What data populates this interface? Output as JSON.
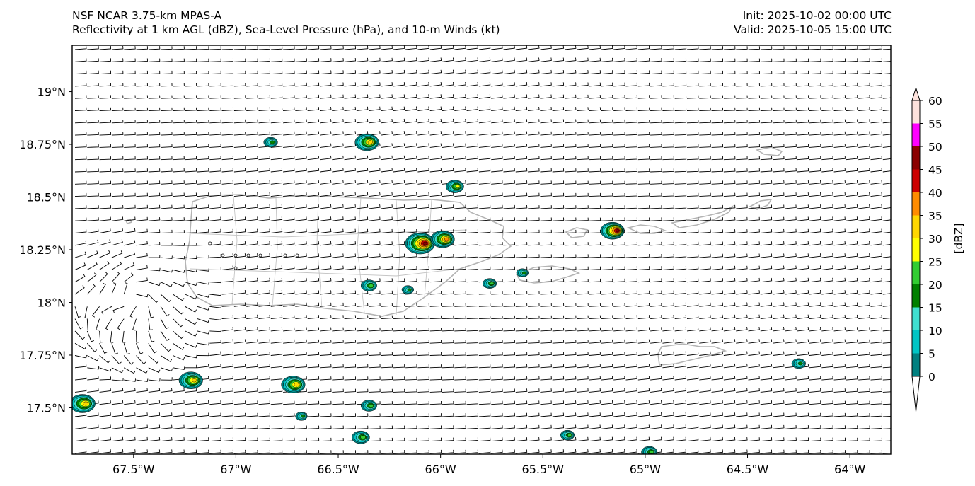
{
  "header": {
    "model": "NSF NCAR 3.75-km MPAS-A",
    "fields": "Reflectivity at 1 km AGL (dBZ), Sea-Level Pressure (hPa), and 10-m Winds (kt)",
    "init": "Init: 2025-10-02 00:00 UTC",
    "valid": "Valid: 2025-10-05 15:00 UTC"
  },
  "map": {
    "lon_range": [
      -67.8,
      -63.8
    ],
    "lat_range": [
      17.28,
      19.22
    ],
    "lat_ticks": [
      {
        "value": 19.0,
        "label": "19°N"
      },
      {
        "value": 18.75,
        "label": "18.75°N"
      },
      {
        "value": 18.5,
        "label": "18.5°N"
      },
      {
        "value": 18.25,
        "label": "18.25°N"
      },
      {
        "value": 18.0,
        "label": "18°N"
      },
      {
        "value": 17.75,
        "label": "17.75°N"
      },
      {
        "value": 17.5,
        "label": "17.5°N"
      }
    ],
    "lon_ticks": [
      {
        "value": -67.5,
        "label": "67.5°W"
      },
      {
        "value": -67.0,
        "label": "67°W"
      },
      {
        "value": -66.5,
        "label": "66.5°W"
      },
      {
        "value": -66.0,
        "label": "66°W"
      },
      {
        "value": -65.5,
        "label": "65.5°W"
      },
      {
        "value": -65.0,
        "label": "65°W"
      },
      {
        "value": -64.5,
        "label": "64.5°W"
      },
      {
        "value": -64.0,
        "label": "64°W"
      }
    ],
    "land_color": "#b4b4b4",
    "wind_color": "#000000",
    "echoes": [
      {
        "lon": -67.75,
        "lat": 17.52,
        "size": 1.3,
        "peak": 30
      },
      {
        "lon": -67.22,
        "lat": 17.63,
        "size": 1.2,
        "peak": 30
      },
      {
        "lon": -66.72,
        "lat": 17.61,
        "size": 1.2,
        "peak": 30
      },
      {
        "lon": -66.35,
        "lat": 17.51,
        "size": 0.8,
        "peak": 20
      },
      {
        "lon": -66.68,
        "lat": 17.46,
        "size": 0.6,
        "peak": 15
      },
      {
        "lon": -66.39,
        "lat": 17.36,
        "size": 0.9,
        "peak": 20
      },
      {
        "lon": -65.38,
        "lat": 17.37,
        "size": 0.7,
        "peak": 20
      },
      {
        "lon": -64.98,
        "lat": 17.29,
        "size": 0.8,
        "peak": 20
      },
      {
        "lon": -64.25,
        "lat": 17.71,
        "size": 0.7,
        "peak": 15
      },
      {
        "lon": -66.83,
        "lat": 18.76,
        "size": 0.7,
        "peak": 15
      },
      {
        "lon": -66.36,
        "lat": 18.76,
        "size": 1.2,
        "peak": 30
      },
      {
        "lon": -65.93,
        "lat": 18.55,
        "size": 0.9,
        "peak": 25
      },
      {
        "lon": -66.1,
        "lat": 18.28,
        "size": 1.5,
        "peak": 45
      },
      {
        "lon": -65.99,
        "lat": 18.3,
        "size": 1.2,
        "peak": 35
      },
      {
        "lon": -65.16,
        "lat": 18.34,
        "size": 1.2,
        "peak": 45
      },
      {
        "lon": -66.35,
        "lat": 18.08,
        "size": 0.8,
        "peak": 20
      },
      {
        "lon": -66.16,
        "lat": 18.06,
        "size": 0.6,
        "peak": 15
      },
      {
        "lon": -65.76,
        "lat": 18.09,
        "size": 0.7,
        "peak": 20
      },
      {
        "lon": -65.6,
        "lat": 18.14,
        "size": 0.6,
        "peak": 15
      }
    ]
  },
  "colorbar": {
    "label": "[dBZ]",
    "ticks": [
      "0",
      "5",
      "10",
      "15",
      "20",
      "25",
      "30",
      "35",
      "40",
      "45",
      "50",
      "55",
      "60"
    ],
    "colors": [
      "#008080",
      "#00c5c5",
      "#40e0d0",
      "#008000",
      "#32cd32",
      "#ffff00",
      "#ffd700",
      "#ff8c00",
      "#cc0000",
      "#8b0000",
      "#ff00ff",
      "#fde2dc"
    ]
  }
}
